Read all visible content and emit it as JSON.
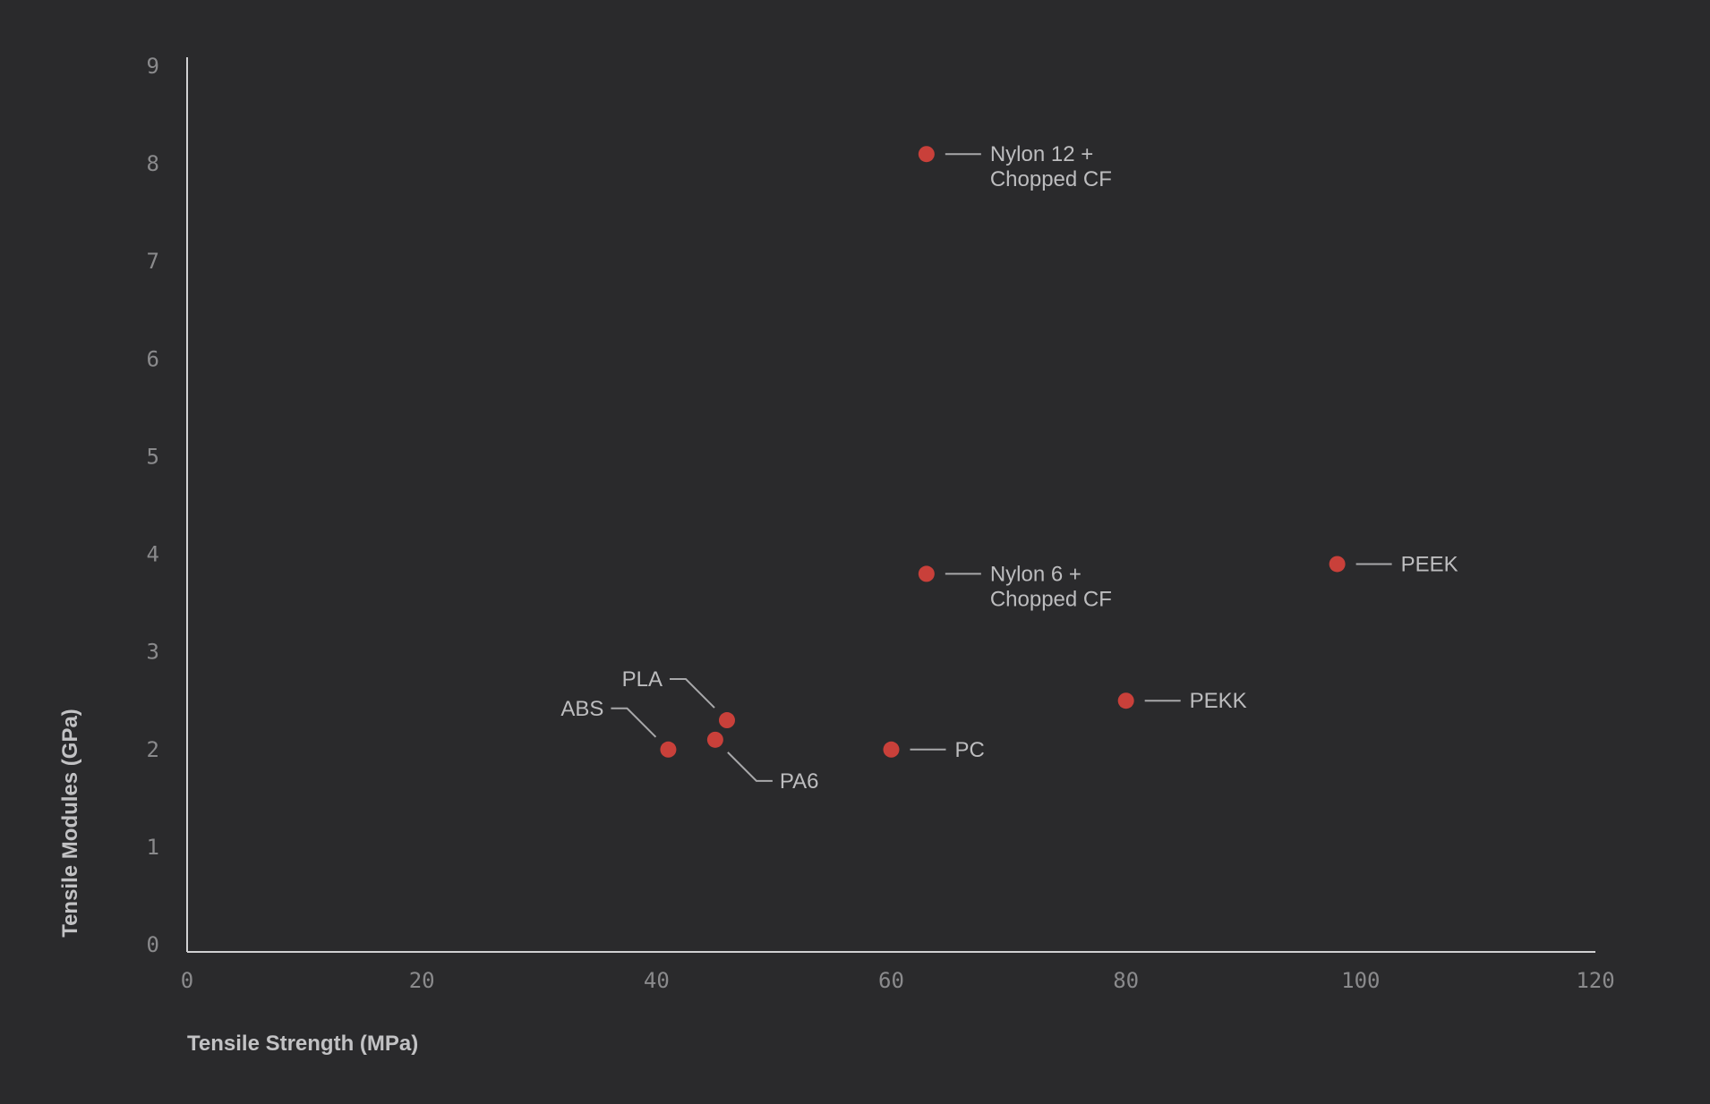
{
  "chart_data": {
    "type": "scatter",
    "title": "",
    "xlabel": "Tensile Strength (MPa)",
    "ylabel": "Tensile Modules (GPa)",
    "xlim": [
      0,
      120
    ],
    "ylim": [
      0,
      9
    ],
    "xticks": [
      0,
      20,
      40,
      60,
      80,
      100,
      120
    ],
    "yticks": [
      0,
      1,
      2,
      3,
      4,
      5,
      6,
      7,
      8,
      9
    ],
    "grid": false,
    "point_color": "#c9403a",
    "points": [
      {
        "label": [
          "Nylon 12 +",
          "Chopped CF"
        ],
        "x": 63,
        "y": 8.1,
        "label_side": "right"
      },
      {
        "label": [
          "Nylon 6 +",
          "Chopped CF"
        ],
        "x": 63,
        "y": 3.8,
        "label_side": "right"
      },
      {
        "label": [
          "PEEK"
        ],
        "x": 98,
        "y": 3.9,
        "label_side": "right"
      },
      {
        "label": [
          "PEKK"
        ],
        "x": 80,
        "y": 2.5,
        "label_side": "right"
      },
      {
        "label": [
          "PC"
        ],
        "x": 60,
        "y": 2.0,
        "label_side": "right"
      },
      {
        "label": [
          "PLA"
        ],
        "x": 46,
        "y": 2.3,
        "label_side": "upper-left"
      },
      {
        "label": [
          "ABS"
        ],
        "x": 41,
        "y": 2.0,
        "label_side": "upper-left"
      },
      {
        "label": [
          "PA6"
        ],
        "x": 45,
        "y": 2.1,
        "label_side": "lower-right"
      }
    ]
  }
}
